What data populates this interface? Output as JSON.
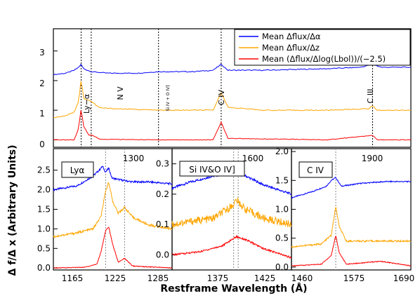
{
  "figure": {
    "ylabel": "Δ f/Δ x (Arbitrary Units)",
    "xlabel": "Restframe Wavelength (Å)"
  },
  "chart_data": [
    {
      "type": "line",
      "panel": "top",
      "x_range": [
        1150,
        2000
      ],
      "ylim": [
        -0.25,
        3.75
      ],
      "yticks": [
        0,
        1,
        2,
        3
      ],
      "legend": {
        "placement": "top-right",
        "entries": [
          {
            "label": "Mean Δflux/Δα",
            "color": "#0000ff"
          },
          {
            "label": "Mean Δflux/Δz",
            "color": "#ffa500"
          },
          {
            "label": "Mean (Δflux/Δlog(Lbol))/(−2.5)",
            "color": "#ff0000"
          }
        ]
      },
      "line_labels": [
        {
          "text": "Ly−α",
          "wavelength": 1216
        },
        {
          "text": "N V",
          "wavelength": 1240
        },
        {
          "text": "Si IV + O IV]",
          "wavelength": 1400
        },
        {
          "text": "C IV",
          "wavelength": 1549
        },
        {
          "text": "C III",
          "wavelength": 1909
        }
      ],
      "series": [
        {
          "name": "Mean Δflux/Δα",
          "color": "#0000ff",
          "baseline": 2.2,
          "points": [
            [
              1150,
              2.2
            ],
            [
              1180,
              2.25
            ],
            [
              1200,
              2.35
            ],
            [
              1210,
              2.45
            ],
            [
              1216,
              2.55
            ],
            [
              1222,
              2.4
            ],
            [
              1240,
              2.3
            ],
            [
              1280,
              2.25
            ],
            [
              1350,
              2.25
            ],
            [
              1400,
              2.3
            ],
            [
              1480,
              2.3
            ],
            [
              1530,
              2.35
            ],
            [
              1549,
              2.55
            ],
            [
              1565,
              2.35
            ],
            [
              1650,
              2.35
            ],
            [
              1800,
              2.4
            ],
            [
              1880,
              2.45
            ],
            [
              1909,
              2.55
            ],
            [
              1930,
              2.45
            ],
            [
              2000,
              2.45
            ]
          ]
        },
        {
          "name": "Mean Δflux/Δz",
          "color": "#ffa500",
          "baseline": 1.0,
          "points": [
            [
              1150,
              0.75
            ],
            [
              1180,
              0.82
            ],
            [
              1200,
              0.95
            ],
            [
              1210,
              1.3
            ],
            [
              1216,
              2.05
            ],
            [
              1222,
              1.4
            ],
            [
              1240,
              1.3
            ],
            [
              1260,
              1.08
            ],
            [
              1300,
              1.05
            ],
            [
              1400,
              1.0
            ],
            [
              1530,
              1.0
            ],
            [
              1549,
              1.6
            ],
            [
              1565,
              1.1
            ],
            [
              1650,
              1.0
            ],
            [
              1800,
              1.0
            ],
            [
              1900,
              1.05
            ],
            [
              1909,
              1.15
            ],
            [
              1920,
              1.0
            ],
            [
              2000,
              1.0
            ]
          ]
        },
        {
          "name": "Mean (Δflux/Δlog(Lbol))/(−2.5)",
          "color": "#ff0000",
          "baseline": 0.0,
          "points": [
            [
              1150,
              0.0
            ],
            [
              1200,
              0.0
            ],
            [
              1210,
              0.4
            ],
            [
              1216,
              1.05
            ],
            [
              1222,
              0.45
            ],
            [
              1235,
              0.15
            ],
            [
              1240,
              0.18
            ],
            [
              1260,
              0.02
            ],
            [
              1400,
              0.0
            ],
            [
              1530,
              0.0
            ],
            [
              1549,
              0.6
            ],
            [
              1565,
              0.05
            ],
            [
              1800,
              0.0
            ],
            [
              1909,
              0.15
            ],
            [
              1920,
              0.0
            ],
            [
              2000,
              0.0
            ]
          ]
        }
      ],
      "vlines": [
        1216,
        1240,
        1400,
        1549,
        1909
      ]
    },
    {
      "type": "line",
      "panel": "Lyα",
      "xlabel_ticks": [
        1165,
        1225,
        1285
      ],
      "top_ticks": [
        1300
      ],
      "xlim": [
        1150,
        1300
      ],
      "ylim": [
        -0.05,
        3.05
      ],
      "yticks": [
        0.0,
        0.5,
        1.0,
        1.5,
        2.0,
        2.5
      ],
      "vlines": [
        1216,
        1240
      ],
      "series": [
        {
          "name": "Mean Δflux/Δα",
          "color": "#0000ff",
          "points": [
            [
              1150,
              2.0
            ],
            [
              1180,
              2.1
            ],
            [
              1200,
              2.35
            ],
            [
              1208,
              2.5
            ],
            [
              1212,
              2.6
            ],
            [
              1216,
              2.45
            ],
            [
              1220,
              2.55
            ],
            [
              1224,
              2.3
            ],
            [
              1235,
              2.25
            ],
            [
              1250,
              2.2
            ],
            [
              1270,
              2.2
            ],
            [
              1300,
              2.15
            ]
          ]
        },
        {
          "name": "Mean Δflux/Δz",
          "color": "#ffa500",
          "points": [
            [
              1150,
              0.8
            ],
            [
              1180,
              0.9
            ],
            [
              1200,
              1.0
            ],
            [
              1210,
              1.3
            ],
            [
              1216,
              1.95
            ],
            [
              1220,
              2.2
            ],
            [
              1225,
              1.7
            ],
            [
              1232,
              1.4
            ],
            [
              1240,
              1.55
            ],
            [
              1250,
              1.3
            ],
            [
              1270,
              1.1
            ],
            [
              1300,
              1.0
            ]
          ]
        },
        {
          "name": "Mean (Δflux/Δlog(Lbol))/(−2.5)",
          "color": "#ff0000",
          "points": [
            [
              1150,
              0.0
            ],
            [
              1190,
              0.02
            ],
            [
              1205,
              0.1
            ],
            [
              1210,
              0.4
            ],
            [
              1216,
              0.95
            ],
            [
              1220,
              1.05
            ],
            [
              1225,
              0.6
            ],
            [
              1232,
              0.15
            ],
            [
              1240,
              0.25
            ],
            [
              1250,
              0.05
            ],
            [
              1300,
              0.0
            ]
          ]
        }
      ]
    },
    {
      "type": "line",
      "panel": "Si IV&O IV]",
      "xlabel_ticks": [
        1375,
        1425
      ],
      "top_ticks": [
        1600
      ],
      "xlim": [
        1330,
        1460
      ],
      "ylim": [
        -0.05,
        0.35
      ],
      "yticks": [
        0.0,
        0.1,
        0.2,
        0.3
      ],
      "vlines": [
        1397,
        1402
      ],
      "series": [
        {
          "name": "Mean Δflux/Δα",
          "color": "#0000ff",
          "points": [
            [
              1330,
              0.22
            ],
            [
              1350,
              0.24
            ],
            [
              1375,
              0.26
            ],
            [
              1395,
              0.27
            ],
            [
              1410,
              0.26
            ],
            [
              1430,
              0.23
            ],
            [
              1460,
              0.2
            ]
          ]
        },
        {
          "name": "Mean Δflux/Δz",
          "color": "#ffa500",
          "points": [
            [
              1330,
              0.1
            ],
            [
              1350,
              0.11
            ],
            [
              1375,
              0.12
            ],
            [
              1395,
              0.16
            ],
            [
              1400,
              0.18
            ],
            [
              1410,
              0.15
            ],
            [
              1430,
              0.12
            ],
            [
              1460,
              0.1
            ]
          ]
        },
        {
          "name": "Mean (Δflux/Δlog(Lbol))/(−2.5)",
          "color": "#ff0000",
          "points": [
            [
              1330,
              0.0
            ],
            [
              1360,
              0.01
            ],
            [
              1385,
              0.03
            ],
            [
              1400,
              0.06
            ],
            [
              1410,
              0.05
            ],
            [
              1430,
              0.02
            ],
            [
              1460,
              -0.01
            ]
          ]
        }
      ]
    },
    {
      "type": "line",
      "panel": "C IV",
      "xlabel_ticks": [
        1460,
        1575,
        1690
      ],
      "top_ticks": [
        1900
      ],
      "xlim": [
        1460,
        1700
      ],
      "ylim": [
        -0.05,
        2.05
      ],
      "yticks": [
        0.0,
        0.5,
        1.0,
        1.5,
        2.0
      ],
      "vlines": [
        1549
      ],
      "series": [
        {
          "name": "Mean Δflux/Δα",
          "color": "#0000ff",
          "points": [
            [
              1460,
              1.2
            ],
            [
              1500,
              1.3
            ],
            [
              1530,
              1.4
            ],
            [
              1540,
              1.5
            ],
            [
              1549,
              1.55
            ],
            [
              1560,
              1.4
            ],
            [
              1600,
              1.45
            ],
            [
              1650,
              1.48
            ],
            [
              1700,
              1.48
            ]
          ]
        },
        {
          "name": "Mean Δflux/Δz",
          "color": "#ffa500",
          "points": [
            [
              1460,
              0.35
            ],
            [
              1520,
              0.4
            ],
            [
              1540,
              0.55
            ],
            [
              1549,
              1.05
            ],
            [
              1556,
              0.7
            ],
            [
              1570,
              0.45
            ],
            [
              1600,
              0.45
            ],
            [
              1640,
              0.45
            ],
            [
              1700,
              0.45
            ]
          ]
        },
        {
          "name": "Mean (Δflux/Δlog(Lbol))/(−2.5)",
          "color": "#ff0000",
          "points": [
            [
              1460,
              0.02
            ],
            [
              1520,
              0.05
            ],
            [
              1540,
              0.2
            ],
            [
              1549,
              0.55
            ],
            [
              1556,
              0.25
            ],
            [
              1570,
              0.05
            ],
            [
              1640,
              0.1
            ],
            [
              1700,
              0.02
            ]
          ]
        }
      ]
    }
  ],
  "top_xticks_labels": [
    "1300",
    "1600",
    "1900"
  ],
  "bottom_xticks_labels": [
    "1165",
    "1225",
    "1285",
    "1375",
    "1425",
    "1460",
    "1575",
    "1690"
  ],
  "top_yticks_labels": [
    "0",
    "1",
    "2",
    "3"
  ],
  "panel_labels": [
    "Lyα",
    "Si IV&O IV]",
    "C IV"
  ]
}
